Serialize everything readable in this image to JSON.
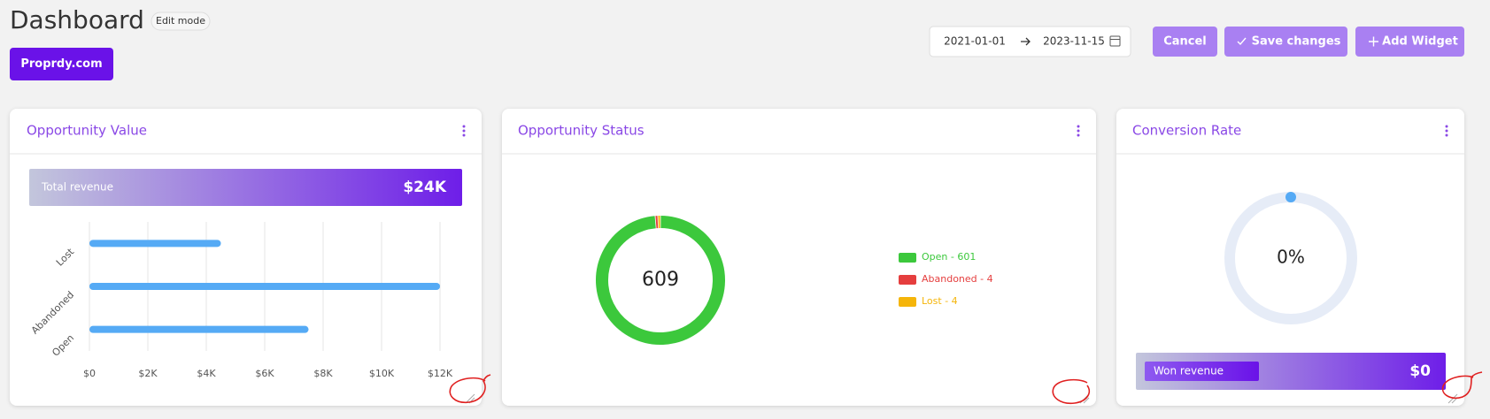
{
  "header": {
    "title": "Dashboard",
    "badge": "Edit mode",
    "site_button": "Proprdy.com"
  },
  "date_range": {
    "start": "2021-01-01",
    "end": "2023-11-15"
  },
  "actions": [
    "Cancel",
    "Save changes",
    "Add Widget"
  ],
  "widgets": [
    {
      "title": "Opportunity Value",
      "kpi_label": "Total revenue",
      "kpi_value": "$24K"
    },
    {
      "title": "Opportunity Status"
    },
    {
      "title": "Conversion Rate",
      "kpi_label": "Won revenue",
      "kpi_value": "$0"
    }
  ],
  "chart_data": [
    {
      "type": "bar",
      "orientation": "horizontal",
      "categories": [
        "Lost",
        "Abandoned",
        "Open"
      ],
      "values": [
        4500,
        12000,
        7500
      ],
      "color": "#55aaf5",
      "xlim": [
        0,
        12000
      ],
      "xticks": [
        {
          "value": 0,
          "label": "$0"
        },
        {
          "value": 2000,
          "label": "$2K"
        },
        {
          "value": 4000,
          "label": "$4K"
        },
        {
          "value": 6000,
          "label": "$6K"
        },
        {
          "value": 8000,
          "label": "$8K"
        },
        {
          "value": 10000,
          "label": "$10K"
        },
        {
          "value": 12000,
          "label": "$12K"
        }
      ],
      "grid": true
    },
    {
      "type": "donut",
      "categories": [
        "Open",
        "Abandoned",
        "Lost"
      ],
      "values": [
        601,
        4,
        4
      ],
      "value_labels": [
        "Open - 601",
        "Abandoned - 4",
        "Lost - 4"
      ],
      "colors": [
        "#3cc83c",
        "#e53e3e",
        "#f5b50a"
      ],
      "total": 609
    },
    {
      "type": "gauge",
      "value": 0,
      "value_label": "0%",
      "range": [
        0,
        100
      ],
      "color": "#55aaf5",
      "track_color": "#e6ecf7"
    }
  ]
}
